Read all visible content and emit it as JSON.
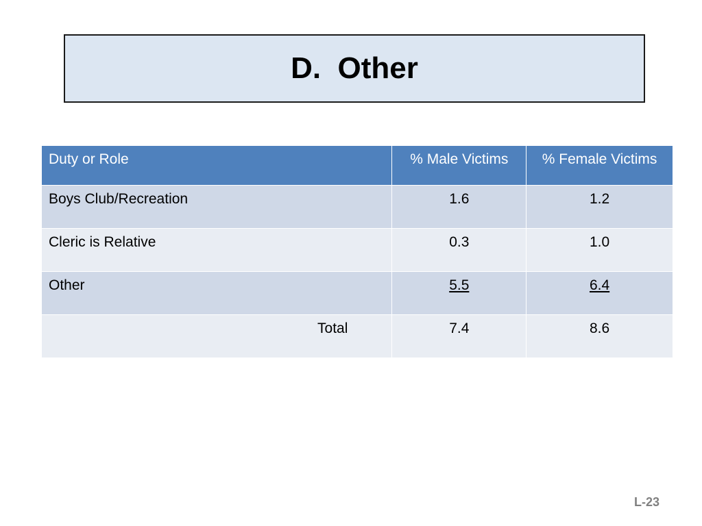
{
  "slide": {
    "title": "D.  Other",
    "footer_code": "L-23"
  },
  "table": {
    "headers": [
      "Duty or Role",
      "% Male Victims",
      "% Female Victims"
    ],
    "rows": [
      {
        "role": "Boys Club/Recreation",
        "male": "1.6",
        "female": "1.2"
      },
      {
        "role": "Cleric is Relative",
        "male": "0.3",
        "female": "1.0"
      },
      {
        "role": "Other",
        "male": "5.5",
        "female": "6.4"
      },
      {
        "role": "Total",
        "male": "7.4",
        "female": "8.6"
      }
    ]
  },
  "colors": {
    "title_background": "#dce6f2",
    "header_background": "#4f81bd",
    "row_band_dark": "#cfd8e7",
    "row_band_light": "#e9edf3",
    "footer_text": "#808080"
  }
}
